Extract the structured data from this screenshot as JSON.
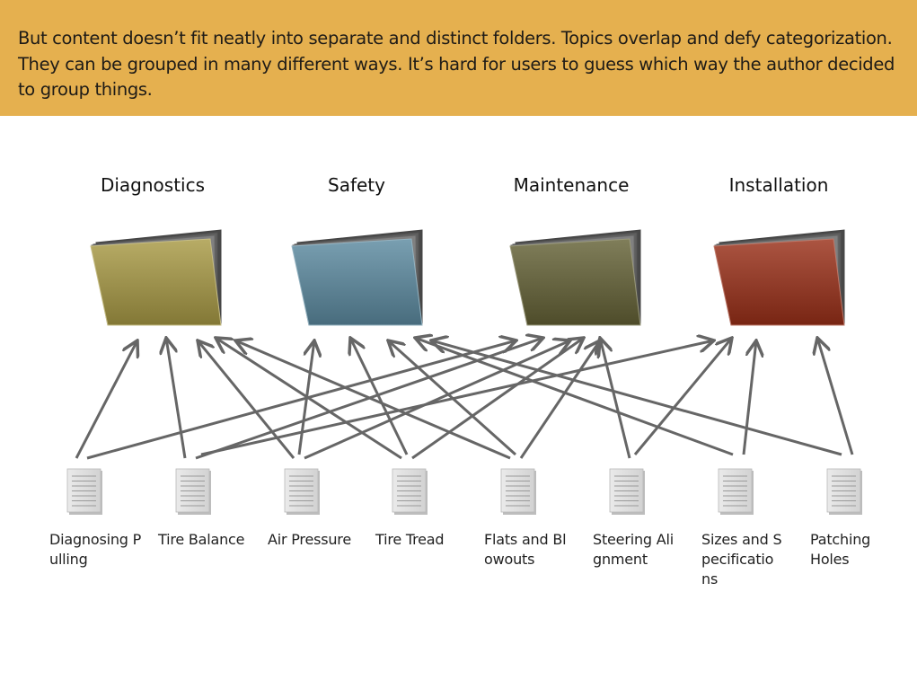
{
  "intro": {
    "text": "But content doesn’t fit neatly into separate and distinct folders. Topics overlap and defy categorization. They can be grouped in many different ways. It’s hard for users to guess which way the author decided to group things."
  },
  "folders": [
    {
      "name": "Diagnostics",
      "color": "#a89a45",
      "icon": "folder-icon"
    },
    {
      "name": "Safety",
      "color": "#5c8aa0",
      "icon": "folder-icon"
    },
    {
      "name": "Maintenance",
      "color": "#646236",
      "icon": "folder-icon"
    },
    {
      "name": "Installation",
      "color": "#9a3018",
      "icon": "folder-icon"
    }
  ],
  "documents": [
    {
      "name": "Diagnosing Pulling",
      "icon": "document-icon"
    },
    {
      "name": "Tire Balance",
      "icon": "document-icon"
    },
    {
      "name": "Air Pressure",
      "icon": "document-icon"
    },
    {
      "name": "Tire Tread",
      "icon": "document-icon"
    },
    {
      "name": "Flats and Blowouts",
      "icon": "document-icon"
    },
    {
      "name": "Steering Alignment",
      "icon": "document-icon"
    },
    {
      "name": "Sizes and Specifications",
      "icon": "document-icon"
    },
    {
      "name": "Patching Holes",
      "icon": "document-icon"
    }
  ],
  "links": [
    {
      "from": "Diagnosing Pulling",
      "to": "Diagnostics"
    },
    {
      "from": "Diagnosing Pulling",
      "to": "Maintenance"
    },
    {
      "from": "Tire Balance",
      "to": "Diagnostics"
    },
    {
      "from": "Tire Balance",
      "to": "Maintenance"
    },
    {
      "from": "Tire Balance",
      "to": "Installation"
    },
    {
      "from": "Air Pressure",
      "to": "Diagnostics"
    },
    {
      "from": "Air Pressure",
      "to": "Safety"
    },
    {
      "from": "Air Pressure",
      "to": "Maintenance"
    },
    {
      "from": "Tire Tread",
      "to": "Diagnostics"
    },
    {
      "from": "Tire Tread",
      "to": "Safety"
    },
    {
      "from": "Tire Tread",
      "to": "Maintenance"
    },
    {
      "from": "Flats and Blowouts",
      "to": "Diagnostics"
    },
    {
      "from": "Flats and Blowouts",
      "to": "Safety"
    },
    {
      "from": "Flats and Blowouts",
      "to": "Maintenance"
    },
    {
      "from": "Steering Alignment",
      "to": "Maintenance"
    },
    {
      "from": "Steering Alignment",
      "to": "Installation"
    },
    {
      "from": "Sizes and Specifications",
      "to": "Safety"
    },
    {
      "from": "Sizes and Specifications",
      "to": "Installation"
    },
    {
      "from": "Patching Holes",
      "to": "Safety"
    },
    {
      "from": "Patching Holes",
      "to": "Installation"
    }
  ],
  "colors": {
    "banner": "#e5b04f",
    "arrow": "#666666",
    "folder_back": "#555555"
  }
}
